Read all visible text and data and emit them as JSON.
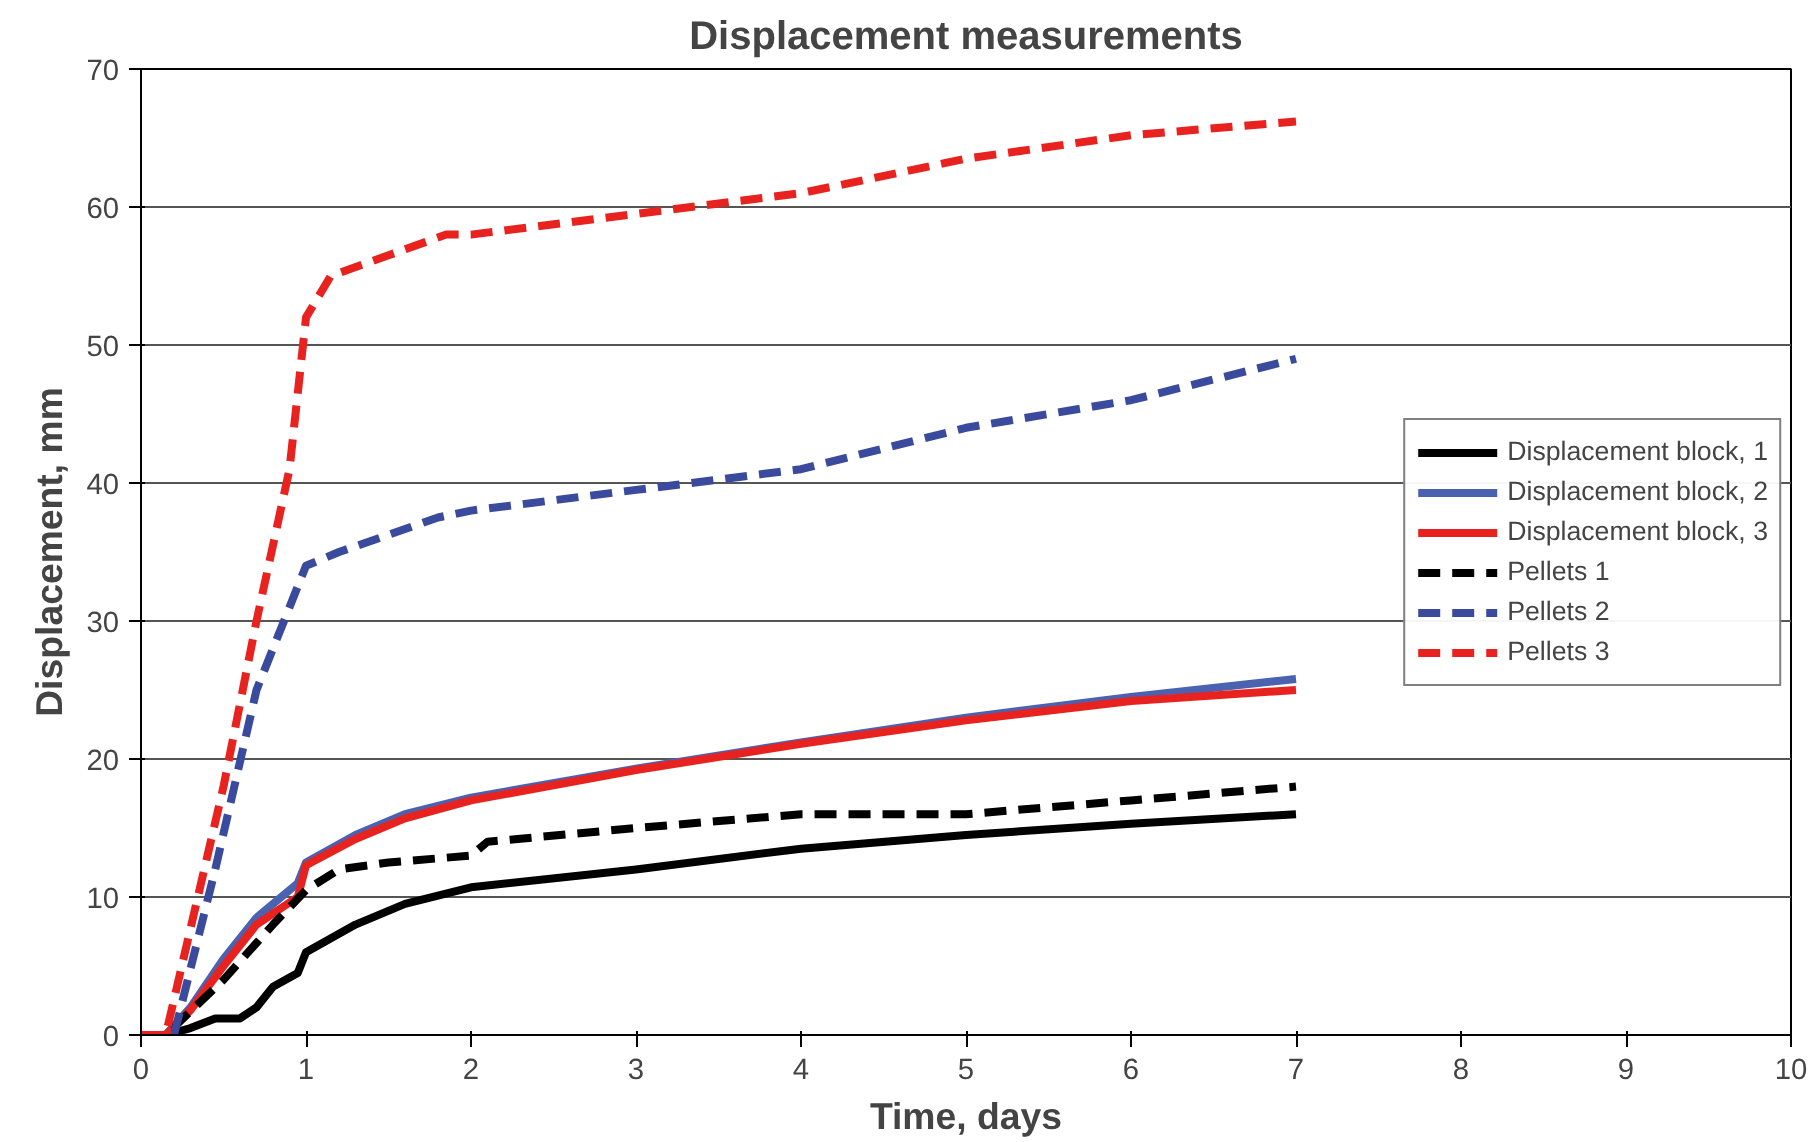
{
  "chart_data": {
    "type": "line",
    "title": "Displacement measurements",
    "xlabel": "Time, days",
    "ylabel": "Displacement, mm",
    "xlim": [
      0,
      10
    ],
    "xticks": [
      0,
      1,
      2,
      3,
      4,
      5,
      6,
      7,
      8,
      9,
      10
    ],
    "ylim": [
      0,
      70
    ],
    "yticks": [
      0,
      10,
      20,
      30,
      40,
      50,
      60,
      70
    ],
    "grid": "y",
    "legend": "right",
    "marker": "none",
    "series": [
      {
        "name": "Displacement block, 1",
        "color": "#000000",
        "line_style": "solid",
        "x": [
          0,
          0.15,
          0.3,
          0.45,
          0.6,
          0.7,
          0.8,
          0.95,
          1,
          1.3,
          1.6,
          2,
          3,
          4,
          5,
          6,
          7
        ],
        "values": [
          0,
          0,
          0.5,
          1.2,
          1.2,
          2,
          3.5,
          4.5,
          6,
          8,
          9.5,
          10.7,
          12,
          13.5,
          14.5,
          15.3,
          16
        ]
      },
      {
        "name": "Displacement block, 2",
        "color": "#4a62b0",
        "line_style": "solid",
        "x": [
          0,
          0.15,
          0.3,
          0.5,
          0.7,
          0.95,
          1,
          1.3,
          1.6,
          2,
          3,
          4,
          5,
          6,
          7
        ],
        "values": [
          0,
          0,
          2,
          5.5,
          8.5,
          11,
          12.5,
          14.5,
          16,
          17.2,
          19.3,
          21.2,
          23,
          24.5,
          25.8
        ]
      },
      {
        "name": "Displacement block, 3",
        "color": "#e8231f",
        "line_style": "solid",
        "x": [
          0,
          0.15,
          0.3,
          0.5,
          0.7,
          0.95,
          1,
          1.3,
          1.6,
          2,
          3,
          4,
          5,
          6,
          7
        ],
        "values": [
          0,
          0,
          1.8,
          5,
          8,
          10,
          12.3,
          14.2,
          15.7,
          17,
          19.2,
          21.1,
          22.8,
          24.2,
          25
        ]
      },
      {
        "name": "Pellets 1",
        "color": "#000000",
        "line_style": "dashed",
        "x": [
          0,
          0.15,
          0.5,
          0.8,
          1,
          1.2,
          1.5,
          2,
          2.1,
          3,
          4,
          5,
          6,
          7
        ],
        "values": [
          0,
          0,
          4,
          8,
          10.5,
          12,
          12.5,
          13,
          14,
          15,
          16,
          16,
          17,
          18
        ]
      },
      {
        "name": "Pellets 2",
        "color": "#3a4a9c",
        "line_style": "dashed",
        "x": [
          0,
          0.2,
          0.45,
          0.7,
          0.9,
          1,
          1.2,
          1.8,
          2,
          3,
          4,
          5,
          6,
          7
        ],
        "values": [
          0,
          0,
          12,
          25,
          31,
          34,
          35,
          37.5,
          38,
          39.5,
          41,
          44,
          46,
          49
        ]
      },
      {
        "name": "Pellets 3",
        "color": "#e8231f",
        "line_style": "dashed",
        "x": [
          0,
          0.15,
          0.5,
          0.7,
          0.9,
          1,
          1.15,
          1.5,
          1.85,
          2,
          3,
          4,
          5,
          6,
          7
        ],
        "values": [
          0,
          0,
          18,
          30,
          41,
          52,
          55,
          56.5,
          58,
          58,
          59.5,
          61,
          63.5,
          65.2,
          66.2
        ]
      }
    ]
  }
}
